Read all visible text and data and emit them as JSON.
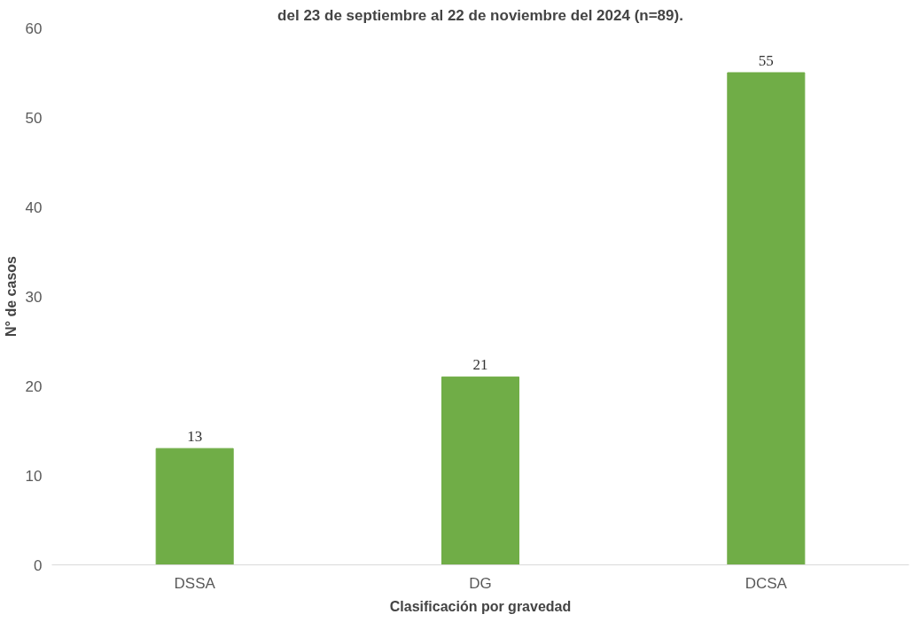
{
  "chart_data": {
    "type": "bar",
    "title": "del 23 de septiembre al 22 de noviembre del 2024 (n=89).",
    "xlabel": "Clasificación por gravedad",
    "ylabel": "N° de casos",
    "categories": [
      "DSSA",
      "DG",
      "DCSA"
    ],
    "values": [
      13,
      21,
      55
    ],
    "color": "#70ad47",
    "ylim": [
      0,
      60
    ],
    "yticks": [
      0,
      10,
      20,
      30,
      40,
      50,
      60
    ],
    "grid": false,
    "data_labels": true
  }
}
